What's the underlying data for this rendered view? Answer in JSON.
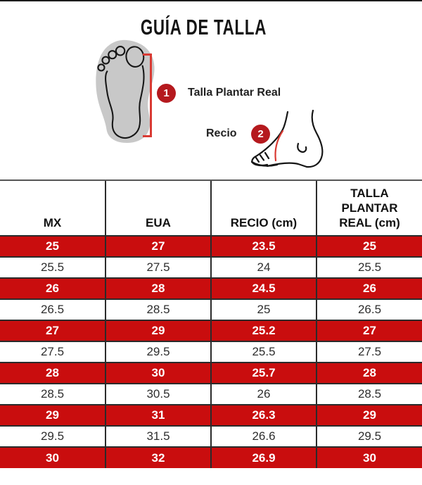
{
  "page": {
    "title": "GUÍA DE TALLA"
  },
  "diagram": {
    "badge1": "1",
    "label1": "Talla Plantar Real",
    "badge2": "2",
    "label2": "Recio",
    "footprint_icon": "footprint-outline",
    "ankle_icon": "foot-side-view-with-instep-measure"
  },
  "table": {
    "headers": [
      "MX",
      "EUA",
      "RECIO (cm)",
      "TALLA PLANTAR REAL (cm)"
    ],
    "rows": [
      {
        "mx": "25",
        "eua": "27",
        "recio": "23.5",
        "talla": "25",
        "highlight": true
      },
      {
        "mx": "25.5",
        "eua": "27.5",
        "recio": "24",
        "talla": "25.5",
        "highlight": false
      },
      {
        "mx": "26",
        "eua": "28",
        "recio": "24.5",
        "talla": "26",
        "highlight": true
      },
      {
        "mx": "26.5",
        "eua": "28.5",
        "recio": "25",
        "talla": "26.5",
        "highlight": false
      },
      {
        "mx": "27",
        "eua": "29",
        "recio": "25.2",
        "talla": "27",
        "highlight": true
      },
      {
        "mx": "27.5",
        "eua": "29.5",
        "recio": "25.5",
        "talla": "27.5",
        "highlight": false
      },
      {
        "mx": "28",
        "eua": "30",
        "recio": "25.7",
        "talla": "28",
        "highlight": true
      },
      {
        "mx": "28.5",
        "eua": "30.5",
        "recio": "26",
        "talla": "28.5",
        "highlight": false
      },
      {
        "mx": "29",
        "eua": "31",
        "recio": "26.3",
        "talla": "29",
        "highlight": true
      },
      {
        "mx": "29.5",
        "eua": "31.5",
        "recio": "26.6",
        "talla": "29.5",
        "highlight": false
      },
      {
        "mx": "30",
        "eua": "32",
        "recio": "26.9",
        "talla": "30",
        "highlight": true
      }
    ]
  },
  "colors": {
    "row_red": "#c90d0e",
    "badge_red": "#b5191e",
    "accent_red": "#d93a33",
    "foot_gray": "#c8c8c8"
  }
}
